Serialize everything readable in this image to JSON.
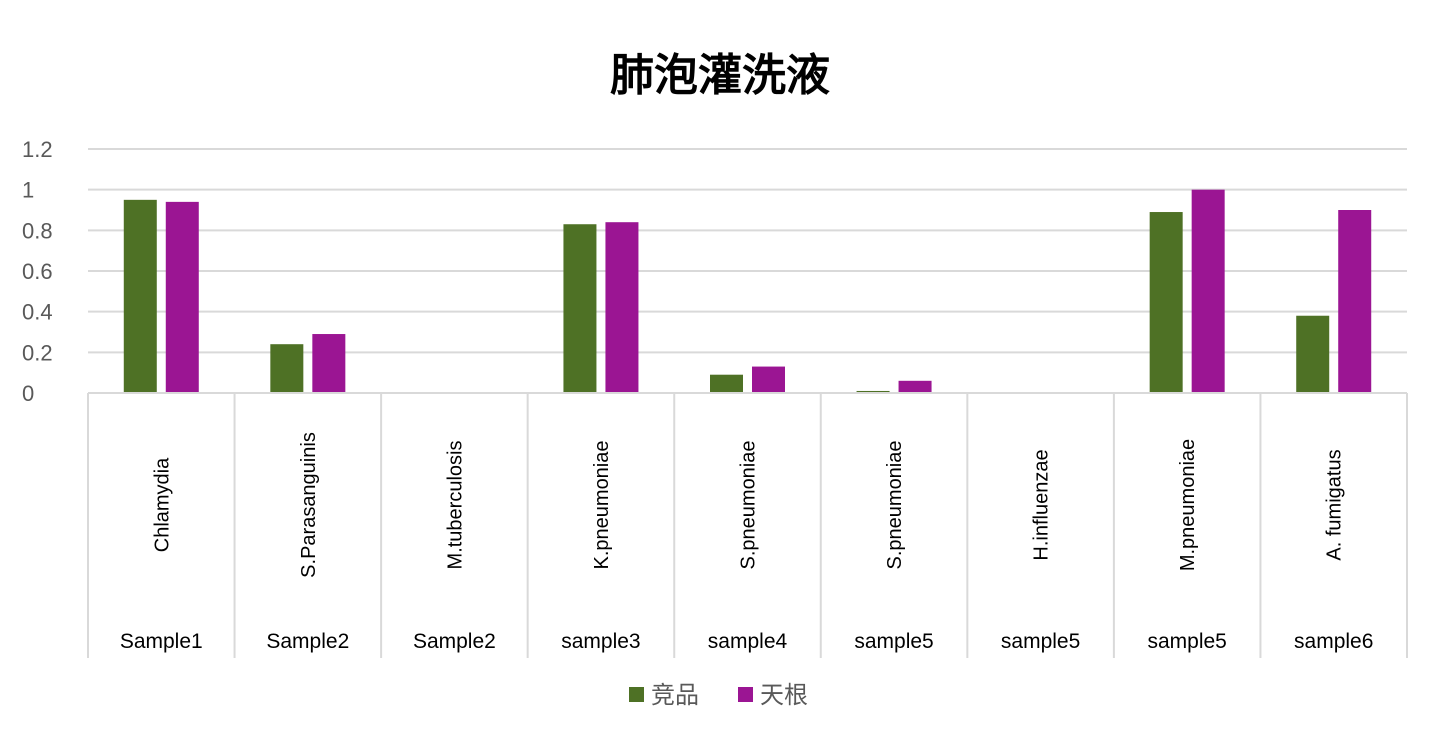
{
  "chart_data": {
    "type": "bar",
    "title": "肺泡灌洗液",
    "xlabel": "",
    "ylabel": "",
    "ylim": [
      0,
      1.2
    ],
    "yticks": [
      "0",
      "0.2",
      "0.4",
      "0.6",
      "0.8",
      "1",
      "1.2"
    ],
    "grid": true,
    "legend_position": "bottom",
    "categories": [
      "Chlamydia",
      "S.Parasanguinis",
      "M.tuberculosis",
      "K.pneumoniae",
      "S.pneumoniae",
      "S.pneumoniae",
      "H.influenzae",
      "M.pneumoniae",
      "A. fumigatus"
    ],
    "groups": [
      "Sample1",
      "Sample2",
      "Sample2",
      "sample3",
      "sample4",
      "sample5",
      "sample5",
      "sample5",
      "sample6"
    ],
    "series": [
      {
        "name": "竞品",
        "color": "#4e7125",
        "values": [
          0.95,
          0.24,
          0,
          0.83,
          0.09,
          0.01,
          0,
          0.89,
          0.38
        ]
      },
      {
        "name": "天根",
        "color": "#9b1593",
        "values": [
          0.94,
          0.29,
          0,
          0.84,
          0.13,
          0.06,
          0,
          1.0,
          0.9
        ]
      }
    ]
  }
}
